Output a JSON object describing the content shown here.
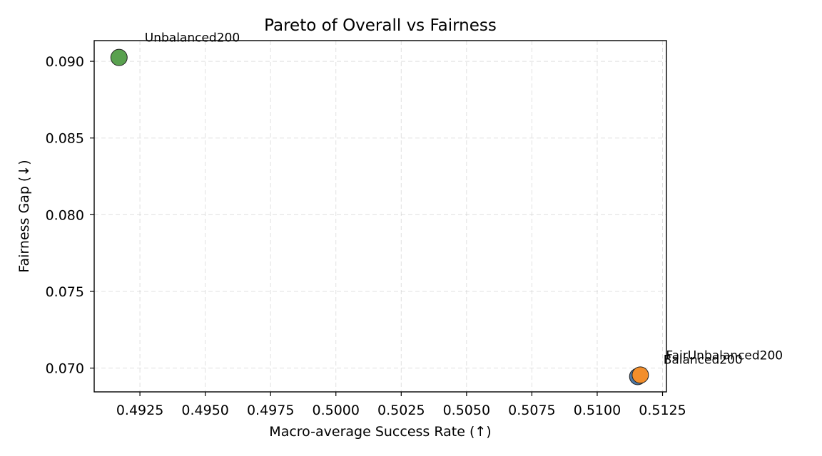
{
  "chart_data": {
    "type": "scatter",
    "title": "Pareto of Overall vs Fairness",
    "xlabel": "Macro-average Success Rate (↑)",
    "ylabel": "Fairness Gap (↓)",
    "xlim": [
      0.49075,
      0.51265
    ],
    "ylim": [
      0.06845,
      0.09135
    ],
    "xticks": [
      0.4925,
      0.495,
      0.4975,
      0.5,
      0.5025,
      0.505,
      0.5075,
      0.51,
      0.5125
    ],
    "xtick_labels": [
      "0.4925",
      "0.4950",
      "0.4975",
      "0.5000",
      "0.5025",
      "0.5050",
      "0.5075",
      "0.5100",
      "0.5125"
    ],
    "yticks": [
      0.07,
      0.075,
      0.08,
      0.085,
      0.09
    ],
    "ytick_labels": [
      "0.070",
      "0.075",
      "0.080",
      "0.085",
      "0.090"
    ],
    "grid": true,
    "points": [
      {
        "label": "Unbalanced200",
        "x": 0.4917,
        "y": 0.09025,
        "color": "#59a14f"
      },
      {
        "label": "Balanced200",
        "x": 0.51155,
        "y": 0.06945,
        "color": "#4e79a7"
      },
      {
        "label": "FairUnbalanced200",
        "x": 0.51165,
        "y": 0.06955,
        "color": "#f28e2b"
      }
    ]
  }
}
